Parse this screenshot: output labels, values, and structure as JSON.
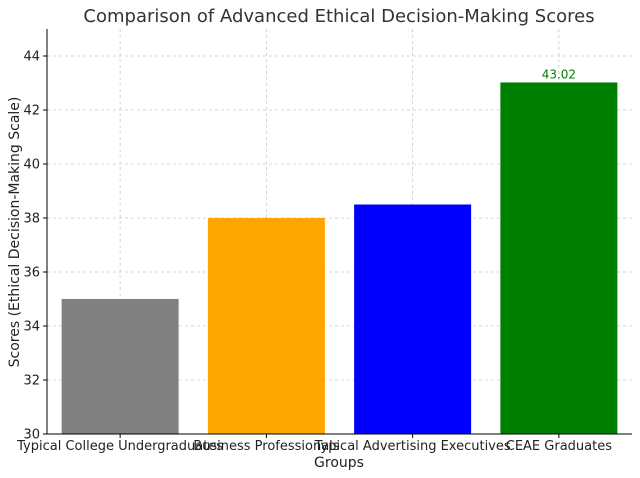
{
  "chart_data": {
    "type": "bar",
    "title": "Comparison of Advanced Ethical Decision-Making Scores",
    "xlabel": "Groups",
    "ylabel": "Scores (Ethical Decision-Making Scale)",
    "categories": [
      "Typical College Undergraduates",
      "Business Professionals",
      "Typical Advertising Executives",
      "CEAE Graduates"
    ],
    "values": [
      35,
      38,
      38.5,
      43.02
    ],
    "colors": [
      "#808080",
      "#FFA500",
      "#0000FF",
      "#008000"
    ],
    "ylim": [
      30,
      45
    ],
    "yticks": [
      30,
      32,
      34,
      36,
      38,
      40,
      42,
      44
    ],
    "grid": true,
    "data_labels": [
      {
        "category_index": 3,
        "text": "43.02",
        "color": "#008000"
      }
    ]
  }
}
